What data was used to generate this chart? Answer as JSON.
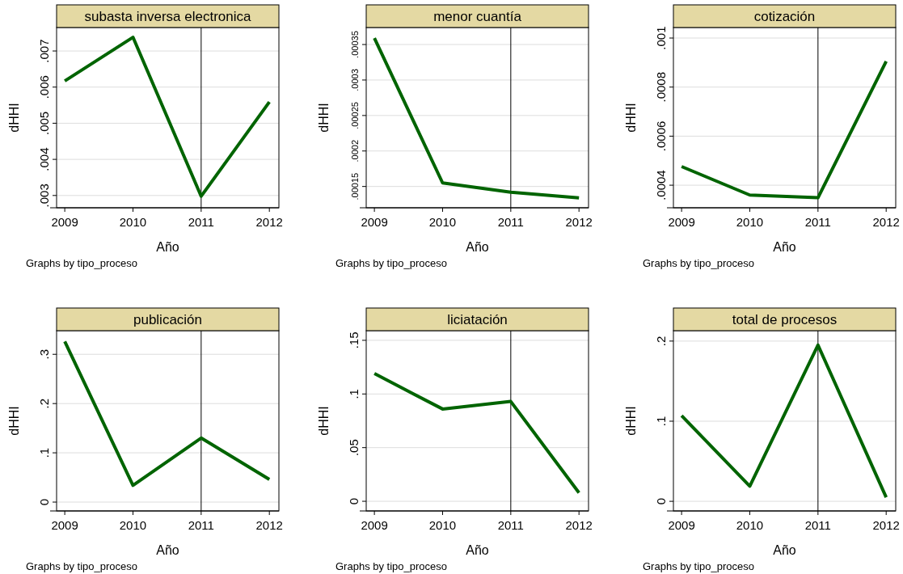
{
  "chart_data": [
    {
      "type": "line",
      "title": "subasta inversa electronica",
      "xlabel": "Año",
      "ylabel": "dHHI",
      "x": [
        2009,
        2010,
        2011,
        2012
      ],
      "series": [
        {
          "color": "#006400",
          "values": [
            0.00617,
            0.00738,
            0.00298,
            0.00559
          ]
        }
      ],
      "xlim": [
        2008.88,
        2012.14
      ],
      "xticks": [
        2009,
        2010,
        2011,
        2012
      ],
      "ylim": [
        0.00266,
        0.00765
      ],
      "yticks": [
        {
          "value": 0.003,
          "label": ".003"
        },
        {
          "value": 0.004,
          "label": ".004"
        },
        {
          "value": 0.005,
          "label": ".005"
        },
        {
          "value": 0.006,
          "label": ".006"
        },
        {
          "value": 0.007,
          "label": ".007"
        }
      ],
      "grid": "y",
      "ref_lines": [
        {
          "axis": "x",
          "value": 2011,
          "color": "#000000"
        }
      ],
      "annotations": [
        "Graphs by tipo_proceso"
      ]
    },
    {
      "type": "line",
      "title": "menor cuantía",
      "xlabel": "Año",
      "ylabel": "dHHI",
      "x": [
        2009,
        2010,
        2011,
        2012
      ],
      "series": [
        {
          "color": "#006400",
          "values": [
            0.000359,
            0.000155,
            0.000142,
            0.000134
          ]
        }
      ],
      "xlim": [
        2008.88,
        2012.14
      ],
      "xticks": [
        2009,
        2010,
        2011,
        2012
      ],
      "ylim": [
        0.00012,
        0.000374
      ],
      "yticks": [
        {
          "value": 0.00015,
          "label": ".00015"
        },
        {
          "value": 0.0002,
          "label": ".0002"
        },
        {
          "value": 0.00025,
          "label": ".00025"
        },
        {
          "value": 0.0003,
          "label": ".0003"
        },
        {
          "value": 0.00035,
          "label": ".00035"
        }
      ],
      "grid": "y",
      "ref_lines": [
        {
          "axis": "x",
          "value": 2011,
          "color": "#000000"
        }
      ],
      "annotations": [
        "Graphs by tipo_proceso"
      ]
    },
    {
      "type": "line",
      "title": "cotización",
      "xlabel": "Año",
      "ylabel": "dHHI",
      "x": [
        2009,
        2010,
        2011,
        2012
      ],
      "series": [
        {
          "color": "#006400",
          "values": [
            0.000476,
            0.00036,
            0.000349,
            0.000905
          ]
        }
      ],
      "xlim": [
        2008.88,
        2012.14
      ],
      "xticks": [
        2009,
        2010,
        2011,
        2012
      ],
      "ylim": [
        0.000308,
        0.001043
      ],
      "yticks": [
        {
          "value": 0.0004,
          "label": ".0004"
        },
        {
          "value": 0.0006,
          "label": ".0006"
        },
        {
          "value": 0.0008,
          "label": ".0008"
        },
        {
          "value": 0.001,
          "label": ".001"
        }
      ],
      "grid": "y",
      "ref_lines": [
        {
          "axis": "x",
          "value": 2011,
          "color": "#000000"
        }
      ],
      "annotations": [
        "Graphs by tipo_proceso"
      ]
    },
    {
      "type": "line",
      "title": "publicación",
      "xlabel": "Año",
      "ylabel": "dHHI",
      "x": [
        2009,
        2010,
        2011,
        2012
      ],
      "series": [
        {
          "color": "#006400",
          "values": [
            0.326,
            0.034,
            0.13,
            0.046
          ]
        }
      ],
      "xlim": [
        2008.88,
        2012.14
      ],
      "xticks": [
        2009,
        2010,
        2011,
        2012
      ],
      "ylim": [
        -0.018,
        0.348
      ],
      "yticks": [
        {
          "value": 0,
          "label": "0"
        },
        {
          "value": 0.1,
          "label": ".1"
        },
        {
          "value": 0.2,
          "label": ".2"
        },
        {
          "value": 0.3,
          "label": ".3"
        }
      ],
      "grid": "y",
      "ref_lines": [
        {
          "axis": "x",
          "value": 2011,
          "color": "#000000"
        }
      ],
      "annotations": [
        "Graphs by tipo_proceso"
      ]
    },
    {
      "type": "line",
      "title": "liciatación",
      "xlabel": "Año",
      "ylabel": "dHHI",
      "x": [
        2009,
        2010,
        2011,
        2012
      ],
      "series": [
        {
          "color": "#006400",
          "values": [
            0.119,
            0.086,
            0.093,
            0.008
          ]
        }
      ],
      "xlim": [
        2008.88,
        2012.14
      ],
      "xticks": [
        2009,
        2010,
        2011,
        2012
      ],
      "ylim": [
        -0.009,
        0.159
      ],
      "yticks": [
        {
          "value": 0,
          "label": "0"
        },
        {
          "value": 0.05,
          "label": ".05"
        },
        {
          "value": 0.1,
          "label": ".1"
        },
        {
          "value": 0.15,
          "label": ".15"
        }
      ],
      "grid": "y",
      "ref_lines": [
        {
          "axis": "x",
          "value": 2011,
          "color": "#000000"
        }
      ],
      "annotations": [
        "Graphs by tipo_proceso"
      ]
    },
    {
      "type": "line",
      "title": "total de procesos",
      "xlabel": "Año",
      "ylabel": "dHHI",
      "x": [
        2009,
        2010,
        2011,
        2012
      ],
      "series": [
        {
          "color": "#006400",
          "values": [
            0.107,
            0.019,
            0.195,
            0.005
          ]
        }
      ],
      "xlim": [
        2008.88,
        2012.14
      ],
      "xticks": [
        2009,
        2010,
        2011,
        2012
      ],
      "ylim": [
        -0.012,
        0.213
      ],
      "yticks": [
        {
          "value": 0,
          "label": "0"
        },
        {
          "value": 0.1,
          "label": ".1"
        },
        {
          "value": 0.2,
          "label": ".2"
        }
      ],
      "grid": "y",
      "ref_lines": [
        {
          "axis": "x",
          "value": 2011,
          "color": "#000000"
        }
      ],
      "annotations": [
        "Graphs by tipo_proceso"
      ]
    }
  ]
}
